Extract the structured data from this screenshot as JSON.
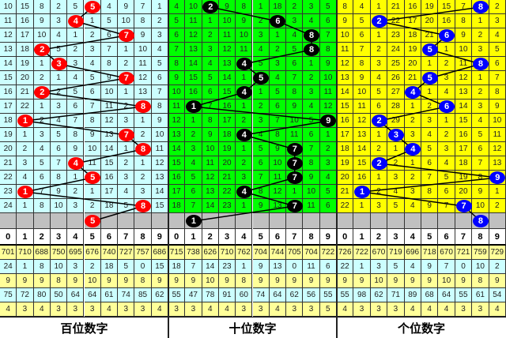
{
  "colors": {
    "gray_row": "#c0c0c0",
    "stat_yellow": "#ffff99",
    "stat_cyan": "#ccffff"
  },
  "header_digits": [
    "0",
    "1",
    "2",
    "3",
    "4",
    "5",
    "6",
    "7",
    "8",
    "9"
  ],
  "panels": [
    {
      "label": "百位数字",
      "bg": "#ccffff",
      "ball_color": "#ff0000",
      "rows": [
        {
          "cells": [
            10,
            15,
            8,
            2,
            5,
            5,
            4,
            9,
            7,
            1
          ],
          "hit": 5
        },
        {
          "cells": [
            11,
            16,
            9,
            3,
            4,
            1,
            5,
            10,
            8,
            2
          ],
          "hit": 4
        },
        {
          "cells": [
            12,
            17,
            10,
            4,
            1,
            2,
            6,
            7,
            9,
            3
          ],
          "hit": 7
        },
        {
          "cells": [
            13,
            18,
            2,
            5,
            2,
            3,
            7,
            1,
            10,
            4
          ],
          "hit": 2
        },
        {
          "cells": [
            14,
            19,
            1,
            3,
            3,
            4,
            8,
            2,
            11,
            5
          ],
          "hit": 3
        },
        {
          "cells": [
            15,
            20,
            2,
            1,
            4,
            5,
            9,
            7,
            12,
            6
          ],
          "hit": 7
        },
        {
          "cells": [
            16,
            21,
            2,
            2,
            5,
            6,
            10,
            1,
            13,
            7
          ],
          "hit": 2
        },
        {
          "cells": [
            17,
            22,
            1,
            3,
            6,
            7,
            11,
            2,
            8,
            8
          ],
          "hit": 8
        },
        {
          "cells": [
            18,
            1,
            2,
            4,
            7,
            8,
            12,
            3,
            1,
            9
          ],
          "hit": 1
        },
        {
          "cells": [
            19,
            1,
            3,
            5,
            8,
            9,
            13,
            7,
            2,
            10
          ],
          "hit": 7
        },
        {
          "cells": [
            20,
            2,
            4,
            6,
            9,
            10,
            14,
            1,
            8,
            11
          ],
          "hit": 8
        },
        {
          "cells": [
            21,
            3,
            5,
            7,
            4,
            11,
            15,
            2,
            1,
            12
          ],
          "hit": 4
        },
        {
          "cells": [
            22,
            4,
            6,
            8,
            1,
            5,
            16,
            3,
            2,
            13
          ],
          "hit": 5
        },
        {
          "cells": [
            23,
            1,
            7,
            9,
            2,
            1,
            17,
            4,
            3,
            14
          ],
          "hit": 1
        },
        {
          "cells": [
            24,
            1,
            8,
            10,
            3,
            2,
            18,
            5,
            8,
            15
          ],
          "hit": 8
        }
      ],
      "next": 5,
      "stats": [
        [
          "701",
          "710",
          "688",
          "750",
          "695",
          "676",
          "740",
          "727",
          "757",
          "686"
        ],
        [
          "24",
          "1",
          "8",
          "10",
          "3",
          "2",
          "18",
          "5",
          "0",
          "15"
        ],
        [
          "9",
          "9",
          "9",
          "8",
          "9",
          "10",
          "9",
          "9",
          "8",
          "9"
        ],
        [
          "75",
          "72",
          "80",
          "50",
          "64",
          "64",
          "61",
          "74",
          "85",
          "62"
        ],
        [
          "4",
          "3",
          "4",
          "3",
          "3",
          "3",
          "4",
          "3",
          "3",
          "4"
        ]
      ]
    },
    {
      "label": "十位数字",
      "bg": "#00ff00",
      "ball_color": "#000000",
      "rows": [
        {
          "cells": [
            4,
            10,
            2,
            9,
            8,
            1,
            18,
            2,
            3,
            5
          ],
          "hit": 2
        },
        {
          "cells": [
            5,
            11,
            1,
            10,
            9,
            2,
            6,
            3,
            4,
            6
          ],
          "hit": 6
        },
        {
          "cells": [
            6,
            12,
            2,
            11,
            10,
            3,
            1,
            4,
            8,
            7
          ],
          "hit": 8
        },
        {
          "cells": [
            7,
            13,
            3,
            12,
            11,
            4,
            2,
            5,
            8,
            8
          ],
          "hit": 8
        },
        {
          "cells": [
            8,
            14,
            4,
            13,
            4,
            5,
            3,
            6,
            1,
            9
          ],
          "hit": 4
        },
        {
          "cells": [
            9,
            15,
            5,
            14,
            1,
            5,
            4,
            7,
            2,
            10
          ],
          "hit": 5
        },
        {
          "cells": [
            10,
            16,
            6,
            15,
            4,
            1,
            5,
            8,
            3,
            11
          ],
          "hit": 4
        },
        {
          "cells": [
            11,
            1,
            7,
            16,
            1,
            2,
            6,
            9,
            4,
            12
          ],
          "hit": 1
        },
        {
          "cells": [
            12,
            1,
            8,
            17,
            2,
            3,
            7,
            10,
            5,
            9
          ],
          "hit": 9
        },
        {
          "cells": [
            13,
            2,
            9,
            18,
            4,
            4,
            8,
            11,
            6,
            1
          ],
          "hit": 4
        },
        {
          "cells": [
            14,
            3,
            10,
            19,
            1,
            5,
            9,
            7,
            7,
            2
          ],
          "hit": 7
        },
        {
          "cells": [
            15,
            4,
            11,
            20,
            2,
            6,
            10,
            7,
            8,
            3
          ],
          "hit": 7
        },
        {
          "cells": [
            16,
            5,
            12,
            21,
            3,
            7,
            11,
            7,
            9,
            4
          ],
          "hit": 7
        },
        {
          "cells": [
            17,
            6,
            13,
            22,
            4,
            8,
            12,
            1,
            10,
            5
          ],
          "hit": 4
        },
        {
          "cells": [
            18,
            7,
            14,
            23,
            1,
            9,
            13,
            7,
            11,
            6
          ],
          "hit": 7
        }
      ],
      "next": 1,
      "stats": [
        [
          "715",
          "738",
          "626",
          "710",
          "762",
          "704",
          "744",
          "705",
          "704",
          "722"
        ],
        [
          "18",
          "7",
          "14",
          "23",
          "1",
          "9",
          "13",
          "0",
          "11",
          "6"
        ],
        [
          "9",
          "9",
          "10",
          "9",
          "8",
          "9",
          "9",
          "9",
          "9",
          "9"
        ],
        [
          "55",
          "47",
          "78",
          "91",
          "60",
          "74",
          "64",
          "62",
          "56",
          "55"
        ],
        [
          "3",
          "3",
          "4",
          "4",
          "3",
          "3",
          "4",
          "3",
          "3",
          "5"
        ]
      ]
    },
    {
      "label": "个位数字",
      "bg": "#ffff00",
      "ball_color": "#0000ff",
      "rows": [
        {
          "cells": [
            8,
            4,
            1,
            21,
            16,
            19,
            15,
            7,
            8,
            2
          ],
          "hit": 8
        },
        {
          "cells": [
            9,
            5,
            2,
            22,
            17,
            20,
            16,
            8,
            1,
            3
          ],
          "hit": 2
        },
        {
          "cells": [
            10,
            6,
            1,
            23,
            18,
            21,
            6,
            9,
            2,
            4
          ],
          "hit": 6
        },
        {
          "cells": [
            11,
            7,
            2,
            24,
            19,
            5,
            1,
            10,
            3,
            5
          ],
          "hit": 5
        },
        {
          "cells": [
            12,
            8,
            3,
            25,
            20,
            1,
            2,
            11,
            8,
            6
          ],
          "hit": 8
        },
        {
          "cells": [
            13,
            9,
            4,
            26,
            21,
            5,
            3,
            12,
            1,
            7
          ],
          "hit": 5
        },
        {
          "cells": [
            14,
            10,
            5,
            27,
            4,
            1,
            4,
            13,
            2,
            8
          ],
          "hit": 4
        },
        {
          "cells": [
            15,
            11,
            6,
            28,
            1,
            2,
            6,
            14,
            3,
            9
          ],
          "hit": 6
        },
        {
          "cells": [
            16,
            12,
            2,
            29,
            2,
            3,
            1,
            15,
            4,
            10
          ],
          "hit": 2
        },
        {
          "cells": [
            17,
            13,
            1,
            3,
            3,
            4,
            2,
            16,
            5,
            11
          ],
          "hit": 3
        },
        {
          "cells": [
            18,
            14,
            2,
            1,
            4,
            5,
            3,
            17,
            6,
            12
          ],
          "hit": 4
        },
        {
          "cells": [
            19,
            15,
            2,
            2,
            1,
            6,
            4,
            18,
            7,
            13
          ],
          "hit": 2
        },
        {
          "cells": [
            20,
            16,
            1,
            3,
            2,
            7,
            5,
            19,
            8,
            9
          ],
          "hit": 9
        },
        {
          "cells": [
            21,
            1,
            2,
            4,
            3,
            8,
            6,
            20,
            9,
            1
          ],
          "hit": 1
        },
        {
          "cells": [
            22,
            1,
            3,
            5,
            4,
            9,
            7,
            7,
            10,
            2
          ],
          "hit": 7
        }
      ],
      "next": 8,
      "stats": [
        [
          "726",
          "722",
          "670",
          "719",
          "696",
          "718",
          "670",
          "721",
          "759",
          "729"
        ],
        [
          "22",
          "1",
          "3",
          "5",
          "4",
          "9",
          "7",
          "0",
          "10",
          "2"
        ],
        [
          "9",
          "9",
          "10",
          "9",
          "9",
          "9",
          "10",
          "9",
          "8",
          "9"
        ],
        [
          "55",
          "98",
          "62",
          "71",
          "89",
          "68",
          "64",
          "55",
          "61",
          "54"
        ],
        [
          "4",
          "3",
          "3",
          "3",
          "4",
          "4",
          "4",
          "3",
          "3",
          "4"
        ]
      ]
    }
  ]
}
